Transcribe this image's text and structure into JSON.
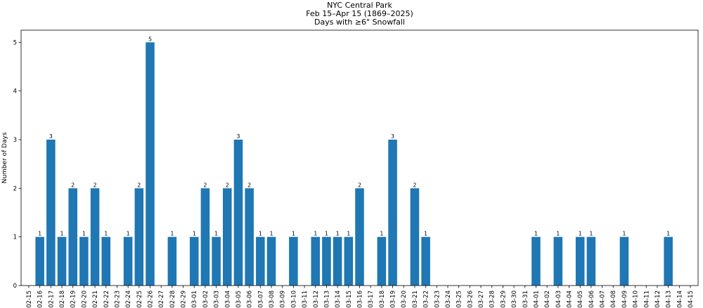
{
  "chart_data": {
    "type": "bar",
    "title_lines": [
      "NYC Central Park",
      "Feb 15–Apr 15 (1869–2025)",
      "Days with ≥6\" Snowfall"
    ],
    "xlabel": "",
    "ylabel": "Number of Days",
    "ylim": [
      0,
      5.25
    ],
    "yticks": [
      0,
      1,
      2,
      3,
      4,
      5
    ],
    "bar_color": "#1f77b4",
    "grid": false,
    "categories": [
      "02-15",
      "02-16",
      "02-17",
      "02-18",
      "02-19",
      "02-20",
      "02-21",
      "02-22",
      "02-23",
      "02-24",
      "02-25",
      "02-26",
      "02-27",
      "02-28",
      "02-29",
      "03-01",
      "03-02",
      "03-03",
      "03-04",
      "03-05",
      "03-06",
      "03-07",
      "03-08",
      "03-09",
      "03-10",
      "03-11",
      "03-12",
      "03-13",
      "03-14",
      "03-15",
      "03-16",
      "03-17",
      "03-18",
      "03-19",
      "03-20",
      "03-21",
      "03-22",
      "03-23",
      "03-24",
      "03-25",
      "03-26",
      "03-27",
      "03-28",
      "03-29",
      "03-30",
      "03-31",
      "04-01",
      "04-02",
      "04-03",
      "04-04",
      "04-05",
      "04-06",
      "04-07",
      "04-08",
      "04-09",
      "04-10",
      "04-11",
      "04-12",
      "04-13",
      "04-14",
      "04-15"
    ],
    "values": [
      0,
      1,
      3,
      1,
      2,
      1,
      2,
      1,
      0,
      1,
      2,
      5,
      0,
      1,
      0,
      1,
      2,
      1,
      2,
      3,
      2,
      1,
      1,
      0,
      1,
      0,
      1,
      1,
      1,
      1,
      2,
      0,
      1,
      3,
      0,
      2,
      1,
      0,
      0,
      0,
      0,
      0,
      0,
      0,
      0,
      0,
      1,
      0,
      1,
      0,
      1,
      1,
      0,
      0,
      1,
      0,
      0,
      0,
      1,
      0,
      0
    ]
  }
}
